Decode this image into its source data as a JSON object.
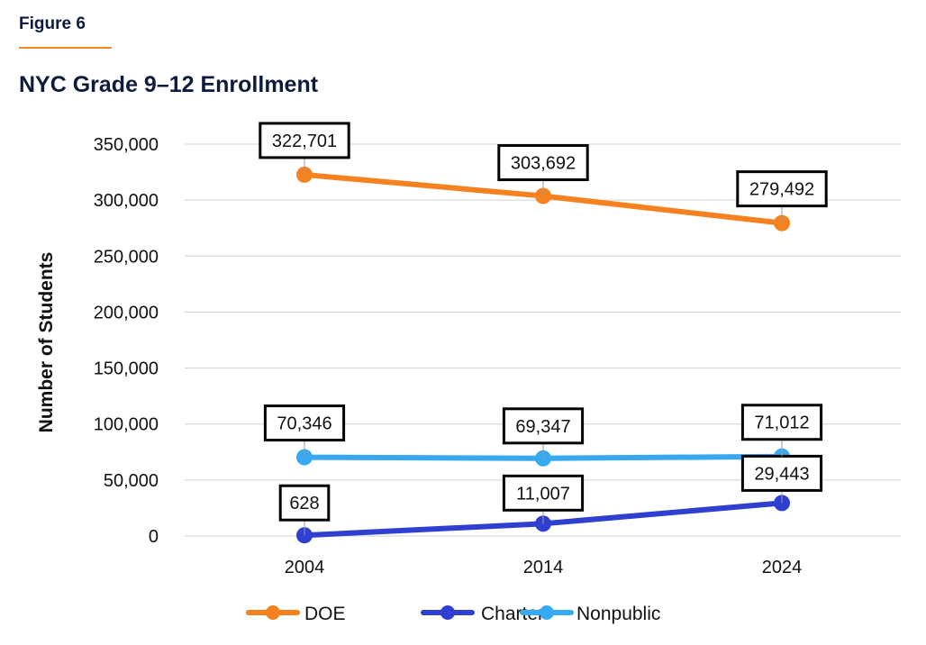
{
  "figure_label": "Figure 6",
  "colors": {
    "accent_rule": "#f28a1e",
    "title": "#0d1b3e"
  },
  "chart_data": {
    "type": "line",
    "title": "NYC Grade 9–12 Enrollment",
    "xlabel": "",
    "ylabel": "Number of Students",
    "x": [
      "2004",
      "2014",
      "2024"
    ],
    "ylim": [
      0,
      350000
    ],
    "yticks": [
      0,
      50000,
      100000,
      150000,
      200000,
      250000,
      300000,
      350000
    ],
    "ytick_labels": [
      "0",
      "50,000",
      "100,000",
      "150,000",
      "200,000",
      "250,000",
      "300,000",
      "350,000"
    ],
    "grid": "horizontal",
    "legend_position": "bottom",
    "series": [
      {
        "name": "DOE",
        "color": "#f5821f",
        "values": [
          322701,
          303692,
          279492
        ],
        "labels": [
          "322,701",
          "303,692",
          "279,492"
        ]
      },
      {
        "name": "Charter",
        "color": "#2f3fd0",
        "values": [
          628,
          11007,
          29443
        ],
        "labels": [
          "628",
          "11,007",
          "29,443"
        ]
      },
      {
        "name": "Nonpublic",
        "color": "#36a9f0",
        "values": [
          70346,
          69347,
          71012
        ],
        "labels": [
          "70,346",
          "69,347",
          "71,012"
        ]
      }
    ]
  }
}
